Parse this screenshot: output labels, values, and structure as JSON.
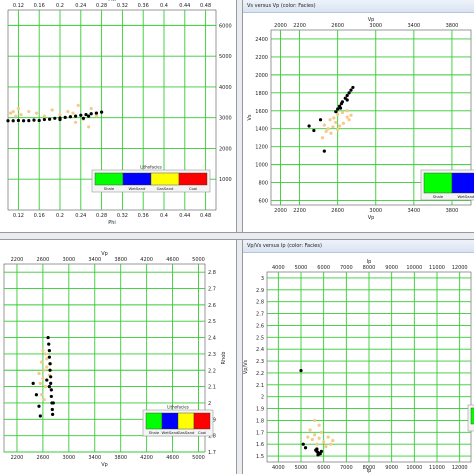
{
  "windows": [
    {
      "id": "w1",
      "title": "",
      "has_titlebar": false,
      "chart_data": {
        "type": "scatter",
        "xlabel": "Phi",
        "ylabel": "",
        "xlim": [
          0.1,
          0.5
        ],
        "ylim": [
          0,
          6500
        ],
        "x_ticks": [
          0.12,
          0.16,
          0.2,
          0.24,
          0.28,
          0.32,
          0.36,
          0.4,
          0.44,
          0.48
        ],
        "x_tick_labels": [
          "0.12",
          "0.16",
          "0.2",
          "0.24",
          "0.28",
          "0.32",
          "0.36",
          "0.4",
          "0.44",
          "0.48"
        ],
        "y_ticks": [
          1000,
          2000,
          3000,
          4000,
          5000,
          6000
        ],
        "y_tick_labels": [
          "1000",
          "2000",
          "3000",
          "4000",
          "5000",
          "6000"
        ],
        "grid": true,
        "series": [
          {
            "color": "#f5c98a",
            "points": [
              [
                0.105,
                3150
              ],
              [
                0.11,
                3200
              ],
              [
                0.115,
                3050
              ],
              [
                0.12,
                3300
              ],
              [
                0.125,
                3100
              ],
              [
                0.14,
                3200
              ],
              [
                0.155,
                3150
              ],
              [
                0.17,
                3050
              ],
              [
                0.185,
                3250
              ],
              [
                0.2,
                3100
              ],
              [
                0.215,
                3200
              ],
              [
                0.23,
                2850
              ],
              [
                0.245,
                2950
              ],
              [
                0.255,
                2700
              ],
              [
                0.26,
                3300
              ],
              [
                0.27,
                3050
              ],
              [
                0.235,
                3400
              ],
              [
                0.225,
                3150
              ]
            ]
          },
          {
            "color": "#000000",
            "points": [
              [
                0.1,
                2900
              ],
              [
                0.11,
                2900
              ],
              [
                0.12,
                2910
              ],
              [
                0.13,
                2900
              ],
              [
                0.14,
                2905
              ],
              [
                0.15,
                2920
              ],
              [
                0.16,
                2910
              ],
              [
                0.17,
                2940
              ],
              [
                0.18,
                2950
              ],
              [
                0.19,
                2980
              ],
              [
                0.2,
                2990
              ],
              [
                0.21,
                3010
              ],
              [
                0.22,
                3030
              ],
              [
                0.23,
                3050
              ],
              [
                0.24,
                3080
              ],
              [
                0.25,
                3100
              ],
              [
                0.26,
                3130
              ],
              [
                0.27,
                3150
              ],
              [
                0.28,
                3180
              ],
              [
                0.245,
                2980
              ],
              [
                0.255,
                3050
              ],
              [
                0.2,
                2940
              ]
            ]
          }
        ],
        "legend": {
          "title": "Lithofacies",
          "items": [
            {
              "label": "Shale",
              "color": "#00ff00"
            },
            {
              "label": "WetSand",
              "color": "#0000ff"
            },
            {
              "label": "GasSand",
              "color": "#ffff00"
            },
            {
              "label": "Coal",
              "color": "#ff0000"
            }
          ]
        }
      }
    },
    {
      "id": "w2",
      "title": "Vs versus Vp (color: Facies)",
      "has_titlebar": true,
      "chart_data": {
        "type": "scatter",
        "xlabel": "Vp",
        "ylabel": "Vs",
        "xlim": [
          1900,
          4000
        ],
        "ylim": [
          550,
          2500
        ],
        "x_ticks": [
          2000,
          2200,
          2600,
          3000,
          3400,
          3800
        ],
        "x_tick_labels": [
          "2000",
          "2200",
          "2600",
          "3000",
          "3400",
          "3800"
        ],
        "y_ticks": [
          600,
          800,
          1000,
          1200,
          1400,
          1600,
          1800,
          2000,
          2200,
          2400
        ],
        "y_tick_labels": [
          "600",
          "800",
          "1000",
          "1200",
          "1400",
          "1600",
          "1800",
          "2000",
          "2200",
          "2400"
        ],
        "grid": true,
        "series": [
          {
            "color": "#f5c98a",
            "points": [
              [
                2520,
                1500
              ],
              [
                2560,
                1520
              ],
              [
                2600,
                1560
              ],
              [
                2650,
                1580
              ],
              [
                2700,
                1600
              ],
              [
                2580,
                1470
              ],
              [
                2620,
                1430
              ],
              [
                2550,
                1420
              ],
              [
                2500,
                1400
              ],
              [
                2660,
                1460
              ],
              [
                2700,
                1530
              ],
              [
                2740,
                1550
              ],
              [
                2480,
                1370
              ],
              [
                2530,
                1350
              ],
              [
                2600,
                1390
              ],
              [
                2440,
                1300
              ],
              [
                2720,
                1500
              ],
              [
                2460,
                1440
              ]
            ]
          },
          {
            "color": "#000000",
            "points": [
              [
                2620,
                1650
              ],
              [
                2650,
                1700
              ],
              [
                2680,
                1740
              ],
              [
                2700,
                1770
              ],
              [
                2720,
                1800
              ],
              [
                2740,
                1830
              ],
              [
                2760,
                1860
              ],
              [
                2600,
                1620
              ],
              [
                2580,
                1590
              ],
              [
                2640,
                1680
              ],
              [
                2700,
                1720
              ],
              [
                2420,
                1500
              ],
              [
                2350,
                1380
              ],
              [
                2300,
                1430
              ],
              [
                2460,
                1150
              ],
              [
                2630,
                1630
              ]
            ]
          }
        ],
        "legend": {
          "title": "",
          "items": [
            {
              "label": "Shale",
              "color": "#00ff00"
            },
            {
              "label": "WetSand",
              "color": "#0000ff"
            }
          ]
        }
      }
    },
    {
      "id": "w3",
      "title": "",
      "has_titlebar": false,
      "chart_data": {
        "type": "scatter",
        "xlabel": "Vp",
        "ylabel": "Rhob",
        "xlim": [
          2000,
          5100
        ],
        "ylim": [
          1.7,
          2.85
        ],
        "x_ticks": [
          2200,
          2600,
          3000,
          3400,
          3800,
          4200,
          4600,
          5000
        ],
        "x_tick_labels": [
          "2200",
          "2600",
          "3000",
          "3400",
          "3800",
          "4200",
          "4600",
          "5000"
        ],
        "y_ticks": [
          1.7,
          1.8,
          1.9,
          2.0,
          2.1,
          2.2,
          2.3,
          2.4,
          2.5,
          2.6,
          2.7,
          2.8
        ],
        "y_tick_labels": [
          "1.7",
          "1.8",
          "1.9",
          "2",
          "2.1",
          "2.2",
          "2.3",
          "2.4",
          "2.5",
          "2.6",
          "2.7",
          "2.8"
        ],
        "grid": true,
        "series": [
          {
            "color": "#f5c98a",
            "points": [
              [
                2600,
                2.32
              ],
              [
                2640,
                2.3
              ],
              [
                2700,
                2.28
              ],
              [
                2580,
                2.25
              ],
              [
                2620,
                2.2
              ],
              [
                2660,
                2.22
              ],
              [
                2600,
                2.15
              ],
              [
                2560,
                2.12
              ],
              [
                2640,
                2.1
              ],
              [
                2700,
                2.17
              ],
              [
                2580,
                2.05
              ],
              [
                2620,
                2.02
              ],
              [
                2660,
                2.27
              ],
              [
                2720,
                2.24
              ],
              [
                2540,
                2.18
              ]
            ]
          },
          {
            "color": "#000000",
            "points": [
              [
                2680,
                2.4
              ],
              [
                2690,
                2.36
              ],
              [
                2700,
                2.32
              ],
              [
                2700,
                2.28
              ],
              [
                2710,
                2.24
              ],
              [
                2710,
                2.2
              ],
              [
                2720,
                2.16
              ],
              [
                2720,
                2.12
              ],
              [
                2730,
                2.08
              ],
              [
                2730,
                2.04
              ],
              [
                2740,
                2.0
              ],
              [
                2745,
                1.96
              ],
              [
                2750,
                1.93
              ],
              [
                2760,
                2.0
              ],
              [
                2700,
                2.1
              ],
              [
                2660,
                2.14
              ],
              [
                2450,
                2.12
              ],
              [
                2500,
                2.05
              ],
              [
                2540,
                1.98
              ],
              [
                2560,
                1.92
              ]
            ]
          }
        ],
        "legend": {
          "title": "Lithofacies",
          "items": [
            {
              "label": "Shale",
              "color": "#00ff00"
            },
            {
              "label": "WetSand",
              "color": "#0000ff"
            },
            {
              "label": "GasSand",
              "color": "#ffff00"
            },
            {
              "label": "Coal",
              "color": "#ff0000"
            }
          ]
        }
      }
    },
    {
      "id": "w4",
      "title": "Vp/Vs versus Ip (color: Facies)",
      "has_titlebar": true,
      "chart_data": {
        "type": "scatter",
        "xlabel": "Ip",
        "ylabel": "Vp/Vs",
        "xlim": [
          3500,
          12500
        ],
        "ylim": [
          1.45,
          3.05
        ],
        "x_ticks": [
          4000,
          5000,
          6000,
          7000,
          8000,
          9000,
          10000,
          11000,
          12000
        ],
        "x_tick_labels": [
          "4000",
          "5000",
          "6000",
          "7000",
          "8000",
          "9000",
          "10000",
          "11000",
          "12000"
        ],
        "y_ticks": [
          1.5,
          1.6,
          1.7,
          1.8,
          1.9,
          2.0,
          2.1,
          2.2,
          2.3,
          2.4,
          2.5,
          2.6,
          2.7,
          2.8,
          2.9,
          3.0
        ],
        "y_tick_labels": [
          "1.5",
          "1.6",
          "1.7",
          "1.8",
          "1.9",
          "2",
          "2.1",
          "2.2",
          "2.3",
          "2.4",
          "2.5",
          "2.6",
          "2.7",
          "2.8",
          "2.9",
          "3"
        ],
        "grid": true,
        "series": [
          {
            "color": "#f5c98a",
            "points": [
              [
                5400,
                1.72
              ],
              [
                5600,
                1.68
              ],
              [
                5800,
                1.65
              ],
              [
                6000,
                1.62
              ],
              [
                5700,
                1.6
              ],
              [
                5500,
                1.64
              ],
              [
                6200,
                1.66
              ],
              [
                6400,
                1.63
              ],
              [
                5900,
                1.7
              ],
              [
                5300,
                1.66
              ],
              [
                6100,
                1.58
              ],
              [
                5800,
                1.76
              ],
              [
                5600,
                1.8
              ],
              [
                6300,
                1.6
              ]
            ]
          },
          {
            "color": "#000000",
            "points": [
              [
                5650,
                1.55
              ],
              [
                5700,
                1.54
              ],
              [
                5750,
                1.53
              ],
              [
                5800,
                1.52
              ],
              [
                5850,
                1.52
              ],
              [
                5700,
                1.56
              ],
              [
                5900,
                1.54
              ],
              [
                5100,
                1.6
              ],
              [
                5200,
                1.57
              ],
              [
                5000,
                2.22
              ],
              [
                5750,
                1.51
              ]
            ]
          }
        ],
        "legend": {
          "title": "",
          "items": [
            {
              "label": "",
              "color": "#00ff00"
            }
          ]
        }
      }
    }
  ]
}
